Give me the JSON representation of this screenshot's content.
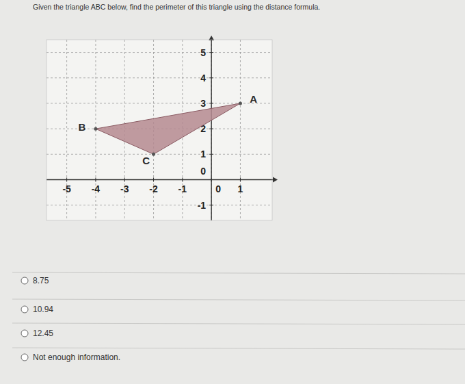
{
  "question": "Given the triangle ABC below, find the perimeter of this triangle using the distance formula.",
  "chart_data": {
    "type": "polygon",
    "xlim": [
      -5.7,
      2.1
    ],
    "ylim": [
      -1.6,
      5.5
    ],
    "xticks": [
      -5,
      -4,
      -3,
      -2,
      -1,
      0,
      1
    ],
    "yticks": [
      -1,
      0,
      1,
      2,
      3,
      4,
      5
    ],
    "grid": true,
    "series": [
      {
        "labels": [
          "A",
          "B",
          "C"
        ],
        "x": [
          1,
          -4,
          -2
        ],
        "y": [
          3,
          2,
          1
        ],
        "color": "#b58a90",
        "marker": "circle"
      }
    ]
  },
  "options": [
    "8.75",
    "10.94",
    "12.45",
    "Not enough information."
  ]
}
